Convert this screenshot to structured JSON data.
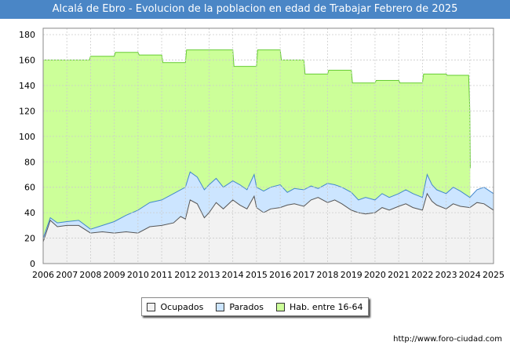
{
  "chart_data": {
    "type": "area",
    "title": "Alcalá de Ebro - Evolucion de la poblacion en edad de Trabajar Febrero de 2025",
    "xlabel": "",
    "ylabel": "",
    "xlim": [
      2006,
      2025
    ],
    "ylim": [
      0,
      185
    ],
    "yticks": [
      0,
      20,
      40,
      60,
      80,
      100,
      120,
      140,
      160,
      180
    ],
    "xticks": [
      "2006",
      "2007",
      "2008",
      "2009",
      "2010",
      "2011",
      "2012",
      "2013",
      "2014",
      "2015",
      "2016",
      "2017",
      "2018",
      "2019",
      "2020",
      "2021",
      "2022",
      "2023",
      "2024",
      "2025"
    ],
    "grid": true,
    "series": [
      {
        "name": "Hab. entre 16-64",
        "color": "#ccff99",
        "line": "#66cc33",
        "points": [
          [
            2006,
            160
          ],
          [
            2007,
            160
          ],
          [
            2007.95,
            160
          ],
          [
            2008,
            163
          ],
          [
            2009,
            163
          ],
          [
            2009.05,
            166
          ],
          [
            2010,
            166
          ],
          [
            2010.05,
            164
          ],
          [
            2011,
            164
          ],
          [
            2011.05,
            158
          ],
          [
            2012,
            158
          ],
          [
            2012.05,
            168
          ],
          [
            2014,
            168
          ],
          [
            2014.05,
            155
          ],
          [
            2015,
            155
          ],
          [
            2015.05,
            168
          ],
          [
            2016,
            168
          ],
          [
            2016.05,
            160
          ],
          [
            2017,
            160
          ],
          [
            2017.05,
            149
          ],
          [
            2018,
            149
          ],
          [
            2018.05,
            152
          ],
          [
            2019,
            152
          ],
          [
            2019.05,
            142
          ],
          [
            2020,
            142
          ],
          [
            2020.05,
            144
          ],
          [
            2021,
            144
          ],
          [
            2021.05,
            142
          ],
          [
            2022,
            142
          ],
          [
            2022.05,
            149
          ],
          [
            2023,
            149
          ],
          [
            2023.05,
            148
          ],
          [
            2023.95,
            148
          ],
          [
            2024.0,
            120
          ],
          [
            2024.02,
            75
          ]
        ]
      },
      {
        "name": "Parados",
        "color": "#cce5ff",
        "line": "#4488cc",
        "points": [
          [
            2006,
            20
          ],
          [
            2006.3,
            36
          ],
          [
            2006.6,
            32
          ],
          [
            2007,
            33
          ],
          [
            2007.5,
            34
          ],
          [
            2008,
            27
          ],
          [
            2008.5,
            30
          ],
          [
            2009,
            33
          ],
          [
            2009.5,
            38
          ],
          [
            2010,
            42
          ],
          [
            2010.5,
            48
          ],
          [
            2011,
            50
          ],
          [
            2011.5,
            55
          ],
          [
            2011.8,
            58
          ],
          [
            2012,
            60
          ],
          [
            2012.2,
            72
          ],
          [
            2012.5,
            68
          ],
          [
            2012.8,
            58
          ],
          [
            2013,
            62
          ],
          [
            2013.3,
            67
          ],
          [
            2013.6,
            60
          ],
          [
            2014,
            65
          ],
          [
            2014.3,
            62
          ],
          [
            2014.6,
            58
          ],
          [
            2014.9,
            70
          ],
          [
            2015,
            60
          ],
          [
            2015.3,
            57
          ],
          [
            2015.6,
            60
          ],
          [
            2016,
            62
          ],
          [
            2016.3,
            56
          ],
          [
            2016.6,
            59
          ],
          [
            2017,
            58
          ],
          [
            2017.3,
            61
          ],
          [
            2017.6,
            59
          ],
          [
            2018,
            63
          ],
          [
            2018.3,
            62
          ],
          [
            2018.6,
            60
          ],
          [
            2019,
            56
          ],
          [
            2019.3,
            50
          ],
          [
            2019.6,
            52
          ],
          [
            2020,
            50
          ],
          [
            2020.3,
            55
          ],
          [
            2020.6,
            52
          ],
          [
            2021,
            55
          ],
          [
            2021.3,
            58
          ],
          [
            2021.6,
            55
          ],
          [
            2022,
            52
          ],
          [
            2022.2,
            70
          ],
          [
            2022.4,
            62
          ],
          [
            2022.6,
            58
          ],
          [
            2023,
            55
          ],
          [
            2023.3,
            60
          ],
          [
            2023.6,
            57
          ],
          [
            2024,
            52
          ],
          [
            2024.3,
            58
          ],
          [
            2024.6,
            60
          ],
          [
            2025,
            55
          ]
        ]
      },
      {
        "name": "Ocupados",
        "color": "#f2f2f2",
        "line": "#555555",
        "points": [
          [
            2006,
            17
          ],
          [
            2006.3,
            34
          ],
          [
            2006.6,
            29
          ],
          [
            2007,
            30
          ],
          [
            2007.5,
            30
          ],
          [
            2008,
            24
          ],
          [
            2008.5,
            25
          ],
          [
            2009,
            24
          ],
          [
            2009.5,
            25
          ],
          [
            2010,
            24
          ],
          [
            2010.5,
            29
          ],
          [
            2011,
            30
          ],
          [
            2011.5,
            32
          ],
          [
            2011.8,
            37
          ],
          [
            2012,
            35
          ],
          [
            2012.2,
            50
          ],
          [
            2012.5,
            47
          ],
          [
            2012.8,
            36
          ],
          [
            2013,
            40
          ],
          [
            2013.3,
            48
          ],
          [
            2013.6,
            43
          ],
          [
            2014,
            50
          ],
          [
            2014.3,
            46
          ],
          [
            2014.6,
            43
          ],
          [
            2014.9,
            53
          ],
          [
            2015,
            44
          ],
          [
            2015.3,
            40
          ],
          [
            2015.6,
            43
          ],
          [
            2016,
            44
          ],
          [
            2016.3,
            46
          ],
          [
            2016.6,
            47
          ],
          [
            2017,
            45
          ],
          [
            2017.3,
            50
          ],
          [
            2017.6,
            52
          ],
          [
            2018,
            48
          ],
          [
            2018.3,
            50
          ],
          [
            2018.6,
            47
          ],
          [
            2019,
            42
          ],
          [
            2019.3,
            40
          ],
          [
            2019.6,
            39
          ],
          [
            2020,
            40
          ],
          [
            2020.3,
            44
          ],
          [
            2020.6,
            42
          ],
          [
            2021,
            45
          ],
          [
            2021.3,
            47
          ],
          [
            2021.6,
            44
          ],
          [
            2022,
            42
          ],
          [
            2022.2,
            55
          ],
          [
            2022.4,
            49
          ],
          [
            2022.6,
            46
          ],
          [
            2023,
            43
          ],
          [
            2023.3,
            47
          ],
          [
            2023.6,
            45
          ],
          [
            2024,
            44
          ],
          [
            2024.3,
            48
          ],
          [
            2024.6,
            47
          ],
          [
            2025,
            42
          ]
        ]
      }
    ]
  },
  "legend": {
    "ocupados": "Ocupados",
    "parados": "Parados",
    "hab": "Hab. entre 16-64"
  },
  "footer": {
    "url": "http://www.foro-ciudad.com"
  }
}
